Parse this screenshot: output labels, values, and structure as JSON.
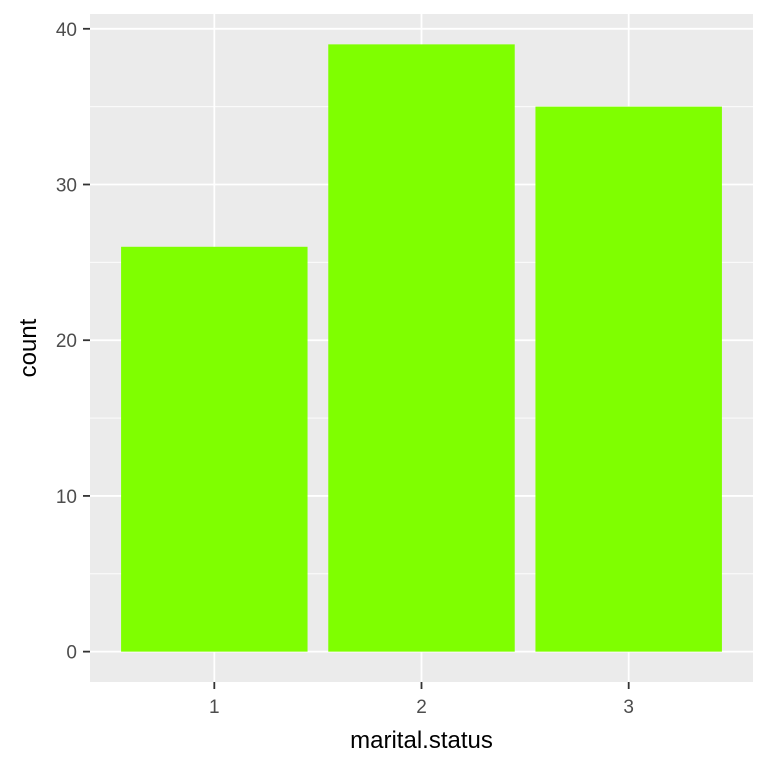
{
  "chart_data": {
    "type": "bar",
    "categories": [
      "1",
      "2",
      "3"
    ],
    "values": [
      26,
      39,
      35
    ],
    "title": "",
    "xlabel": "marital.status",
    "ylabel": "count",
    "ylim": [
      -1.95,
      40.95
    ],
    "y_ticks": [
      0,
      10,
      20,
      30,
      40
    ],
    "y_minor_ticks": [
      5,
      15,
      25,
      35
    ],
    "grid": true,
    "legend": "none",
    "colors": {
      "bar": "#7FFF00",
      "panel_background": "#EBEBEB",
      "grid": "#FFFFFF",
      "tick_label": "#4D4D4D",
      "tick_mark": "#333333",
      "axis_title": "#000000"
    }
  }
}
